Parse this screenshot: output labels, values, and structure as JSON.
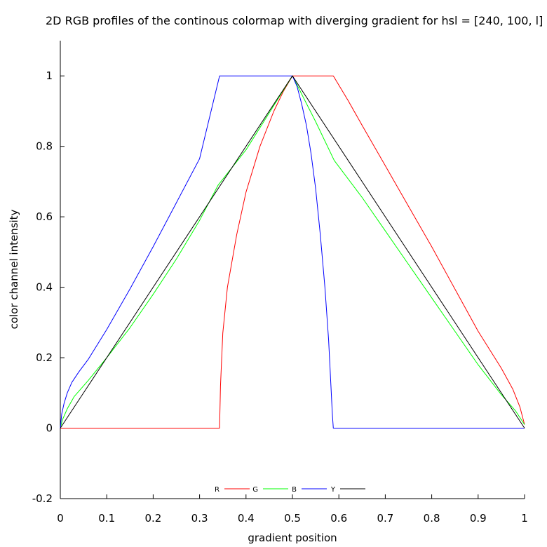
{
  "chart_data": {
    "type": "line",
    "title": "2D RGB profiles of the continous colormap with diverging gradient for hsl = [240, 100, l]",
    "xlabel": "gradient position",
    "ylabel": "color channel intensity",
    "xlim": [
      0,
      1
    ],
    "ylim": [
      -0.2,
      1.1
    ],
    "xticks": [
      0,
      0.1,
      0.2,
      0.3,
      0.4,
      0.5,
      0.6,
      0.7,
      0.8,
      0.9,
      1
    ],
    "yticks": [
      -0.2,
      0,
      0.2,
      0.4,
      0.6,
      0.8,
      1
    ],
    "xtick_labels": [
      "0",
      "0.1",
      "0.2",
      "0.3",
      "0.4",
      "0.5",
      "0.6",
      "0.7",
      "0.8",
      "0.9",
      "1"
    ],
    "ytick_labels": [
      "-0.2",
      "0",
      "0.2",
      "0.4",
      "0.6",
      "0.8",
      "1"
    ],
    "grid": false,
    "legend_placement": "bottom-center",
    "series": [
      {
        "name": "R",
        "color": "#ff0000",
        "points": [
          [
            0,
            0
          ],
          [
            0.343,
            0
          ],
          [
            0.345,
            0.12
          ],
          [
            0.35,
            0.27
          ],
          [
            0.36,
            0.4
          ],
          [
            0.38,
            0.55
          ],
          [
            0.4,
            0.67
          ],
          [
            0.43,
            0.8
          ],
          [
            0.46,
            0.9
          ],
          [
            0.48,
            0.955
          ],
          [
            0.5,
            1
          ],
          [
            0.588,
            1
          ],
          [
            0.62,
            0.93
          ],
          [
            0.65,
            0.86
          ],
          [
            0.7,
            0.745
          ],
          [
            0.75,
            0.63
          ],
          [
            0.8,
            0.515
          ],
          [
            0.85,
            0.395
          ],
          [
            0.9,
            0.275
          ],
          [
            0.95,
            0.17
          ],
          [
            0.975,
            0.11
          ],
          [
            0.99,
            0.06
          ],
          [
            1,
            0.01
          ]
        ]
      },
      {
        "name": "G",
        "color": "#00ff00",
        "points": [
          [
            0,
            0
          ],
          [
            0.005,
            0.025
          ],
          [
            0.015,
            0.055
          ],
          [
            0.03,
            0.09
          ],
          [
            0.06,
            0.135
          ],
          [
            0.1,
            0.2
          ],
          [
            0.15,
            0.285
          ],
          [
            0.2,
            0.38
          ],
          [
            0.25,
            0.48
          ],
          [
            0.3,
            0.59
          ],
          [
            0.34,
            0.69
          ],
          [
            0.4,
            0.79
          ],
          [
            0.45,
            0.895
          ],
          [
            0.5,
            1
          ],
          [
            0.55,
            0.87
          ],
          [
            0.59,
            0.76
          ],
          [
            0.65,
            0.655
          ],
          [
            0.7,
            0.56
          ],
          [
            0.75,
            0.465
          ],
          [
            0.8,
            0.37
          ],
          [
            0.85,
            0.275
          ],
          [
            0.9,
            0.18
          ],
          [
            0.95,
            0.095
          ],
          [
            0.98,
            0.05
          ],
          [
            1,
            0.01
          ]
        ]
      },
      {
        "name": "B",
        "color": "#0000ff",
        "points": [
          [
            0,
            0
          ],
          [
            0.003,
            0.04
          ],
          [
            0.008,
            0.07
          ],
          [
            0.015,
            0.1
          ],
          [
            0.025,
            0.13
          ],
          [
            0.04,
            0.16
          ],
          [
            0.06,
            0.195
          ],
          [
            0.1,
            0.28
          ],
          [
            0.15,
            0.395
          ],
          [
            0.2,
            0.515
          ],
          [
            0.25,
            0.64
          ],
          [
            0.3,
            0.765
          ],
          [
            0.343,
            1
          ],
          [
            0.5,
            1
          ],
          [
            0.51,
            0.97
          ],
          [
            0.52,
            0.92
          ],
          [
            0.53,
            0.86
          ],
          [
            0.54,
            0.78
          ],
          [
            0.55,
            0.68
          ],
          [
            0.56,
            0.55
          ],
          [
            0.57,
            0.4
          ],
          [
            0.578,
            0.25
          ],
          [
            0.583,
            0.12
          ],
          [
            0.586,
            0.04
          ],
          [
            0.588,
            0
          ],
          [
            1,
            0
          ]
        ]
      },
      {
        "name": "Y",
        "color": "#000000",
        "points": [
          [
            0,
            0
          ],
          [
            0.5,
            1
          ],
          [
            1,
            0
          ]
        ]
      }
    ]
  }
}
